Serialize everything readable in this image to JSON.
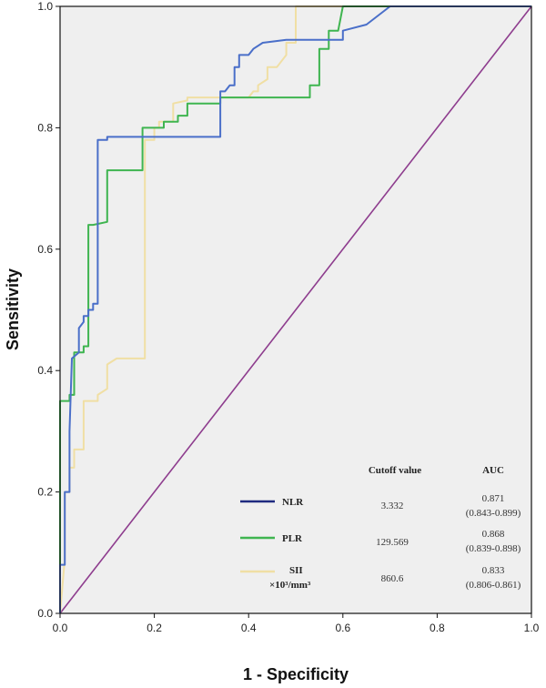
{
  "chart_data": {
    "type": "line",
    "xlabel": "1 - Specificity",
    "ylabel": "Sensitivity",
    "xlim": [
      0,
      1
    ],
    "ylim": [
      0,
      1
    ],
    "x_ticks": [
      "0.0",
      "0.2",
      "0.4",
      "0.6",
      "0.8",
      "1.0"
    ],
    "y_ticks": [
      "0.0",
      "0.2",
      "0.4",
      "0.6",
      "0.8",
      "1.0"
    ],
    "grid": false,
    "background": "#efefef",
    "legend_placement": "bottom-right",
    "table_headers": {
      "cutoff": "Cutoff value",
      "auc": "AUC"
    },
    "reference_line": {
      "color": "#8e3d8e",
      "points": [
        [
          0,
          0
        ],
        [
          1,
          1
        ]
      ]
    },
    "series": [
      {
        "name": "NLR",
        "color": "#4a6fc9",
        "legend_color": "#1f2a80",
        "cutoff": "3.332",
        "auc": "0.871",
        "ci": "(0.843-0.899)",
        "points": [
          [
            0,
            0
          ],
          [
            0,
            0.08
          ],
          [
            0.01,
            0.08
          ],
          [
            0.01,
            0.2
          ],
          [
            0.02,
            0.2
          ],
          [
            0.02,
            0.3
          ],
          [
            0.025,
            0.42
          ],
          [
            0.04,
            0.43
          ],
          [
            0.04,
            0.47
          ],
          [
            0.05,
            0.48
          ],
          [
            0.05,
            0.49
          ],
          [
            0.06,
            0.49
          ],
          [
            0.06,
            0.5
          ],
          [
            0.07,
            0.5
          ],
          [
            0.07,
            0.51
          ],
          [
            0.08,
            0.51
          ],
          [
            0.08,
            0.78
          ],
          [
            0.1,
            0.78
          ],
          [
            0.1,
            0.785
          ],
          [
            0.34,
            0.785
          ],
          [
            0.34,
            0.86
          ],
          [
            0.35,
            0.86
          ],
          [
            0.36,
            0.87
          ],
          [
            0.37,
            0.87
          ],
          [
            0.37,
            0.9
          ],
          [
            0.38,
            0.9
          ],
          [
            0.38,
            0.92
          ],
          [
            0.4,
            0.92
          ],
          [
            0.41,
            0.93
          ],
          [
            0.43,
            0.94
          ],
          [
            0.48,
            0.945
          ],
          [
            0.6,
            0.945
          ],
          [
            0.6,
            0.96
          ],
          [
            0.65,
            0.97
          ],
          [
            0.7,
            1.0
          ],
          [
            1.0,
            1.0
          ]
        ]
      },
      {
        "name": "PLR",
        "color": "#3fb550",
        "legend_color": "#3fb550",
        "cutoff": "129.569",
        "auc": "0.868",
        "ci": "(0.839-0.898)",
        "points": [
          [
            0,
            0
          ],
          [
            0,
            0.35
          ],
          [
            0.02,
            0.35
          ],
          [
            0.02,
            0.36
          ],
          [
            0.03,
            0.36
          ],
          [
            0.03,
            0.43
          ],
          [
            0.05,
            0.43
          ],
          [
            0.05,
            0.44
          ],
          [
            0.06,
            0.44
          ],
          [
            0.06,
            0.64
          ],
          [
            0.07,
            0.64
          ],
          [
            0.1,
            0.645
          ],
          [
            0.1,
            0.71
          ],
          [
            0.1,
            0.73
          ],
          [
            0.175,
            0.73
          ],
          [
            0.175,
            0.8
          ],
          [
            0.22,
            0.8
          ],
          [
            0.22,
            0.81
          ],
          [
            0.25,
            0.81
          ],
          [
            0.25,
            0.82
          ],
          [
            0.27,
            0.82
          ],
          [
            0.27,
            0.84
          ],
          [
            0.34,
            0.84
          ],
          [
            0.34,
            0.85
          ],
          [
            0.53,
            0.85
          ],
          [
            0.53,
            0.87
          ],
          [
            0.55,
            0.87
          ],
          [
            0.55,
            0.93
          ],
          [
            0.57,
            0.93
          ],
          [
            0.57,
            0.96
          ],
          [
            0.59,
            0.96
          ],
          [
            0.6,
            1.0
          ],
          [
            1.0,
            1.0
          ]
        ]
      },
      {
        "name": "SII",
        "label_line2": "×10³/mm³",
        "color": "#f0dfa4",
        "legend_color": "#f0dfa4",
        "cutoff": "860.6",
        "auc": "0.833",
        "ci": "(0.806-0.861)",
        "points": [
          [
            0,
            0
          ],
          [
            0.01,
            0.09
          ],
          [
            0.01,
            0.2
          ],
          [
            0.02,
            0.2
          ],
          [
            0.02,
            0.24
          ],
          [
            0.03,
            0.24
          ],
          [
            0.03,
            0.27
          ],
          [
            0.05,
            0.27
          ],
          [
            0.05,
            0.35
          ],
          [
            0.08,
            0.35
          ],
          [
            0.08,
            0.36
          ],
          [
            0.1,
            0.37
          ],
          [
            0.1,
            0.41
          ],
          [
            0.12,
            0.42
          ],
          [
            0.18,
            0.42
          ],
          [
            0.18,
            0.78
          ],
          [
            0.2,
            0.78
          ],
          [
            0.2,
            0.8
          ],
          [
            0.21,
            0.8
          ],
          [
            0.21,
            0.81
          ],
          [
            0.24,
            0.81
          ],
          [
            0.24,
            0.84
          ],
          [
            0.27,
            0.845
          ],
          [
            0.27,
            0.85
          ],
          [
            0.4,
            0.85
          ],
          [
            0.41,
            0.86
          ],
          [
            0.42,
            0.86
          ],
          [
            0.42,
            0.87
          ],
          [
            0.44,
            0.88
          ],
          [
            0.44,
            0.9
          ],
          [
            0.46,
            0.9
          ],
          [
            0.48,
            0.92
          ],
          [
            0.48,
            0.94
          ],
          [
            0.5,
            0.94
          ],
          [
            0.5,
            1.0
          ],
          [
            1.0,
            1.0
          ]
        ]
      }
    ]
  }
}
